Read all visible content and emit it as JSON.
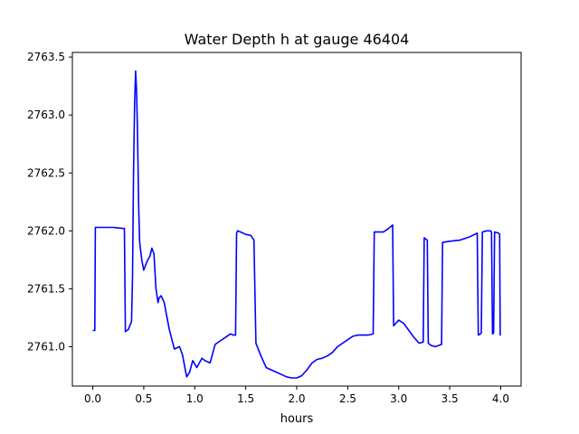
{
  "chart_data": {
    "type": "line",
    "title": "Water Depth h at gauge 46404",
    "xlabel": "hours",
    "ylabel": "",
    "xlim": [
      -0.2,
      4.2
    ],
    "ylim": [
      2760.66,
      2763.54
    ],
    "x_ticks": [
      0.0,
      0.5,
      1.0,
      1.5,
      2.0,
      2.5,
      3.0,
      3.5,
      4.0
    ],
    "x_tick_labels": [
      "0.0",
      "0.5",
      "1.0",
      "1.5",
      "2.0",
      "2.5",
      "3.0",
      "3.5",
      "4.0"
    ],
    "y_ticks": [
      2761.0,
      2761.5,
      2762.0,
      2762.5,
      2763.0,
      2763.5
    ],
    "y_tick_labels": [
      "2761.0",
      "2761.5",
      "2762.0",
      "2762.5",
      "2763.0",
      "2763.5"
    ],
    "grid": false,
    "legend": "none",
    "color": "#0000ff",
    "series": [
      {
        "x": [
          0.0,
          0.02,
          0.025,
          0.1,
          0.2,
          0.3,
          0.31,
          0.32,
          0.35,
          0.38,
          0.39,
          0.4,
          0.41,
          0.42,
          0.43,
          0.44,
          0.45,
          0.46,
          0.48,
          0.5,
          0.52,
          0.54,
          0.56,
          0.58,
          0.6,
          0.61,
          0.62,
          0.64,
          0.65,
          0.67,
          0.7,
          0.75,
          0.8,
          0.85,
          0.88,
          0.92,
          0.95,
          0.98,
          1.02,
          1.07,
          1.1,
          1.15,
          1.2,
          1.25,
          1.3,
          1.35,
          1.38,
          1.4,
          1.41,
          1.42,
          1.45,
          1.5,
          1.55,
          1.58,
          1.6,
          1.65,
          1.7,
          1.75,
          1.8,
          1.85,
          1.9,
          1.95,
          2.0,
          2.05,
          2.1,
          2.15,
          2.2,
          2.25,
          2.3,
          2.35,
          2.4,
          2.45,
          2.5,
          2.55,
          2.6,
          2.65,
          2.7,
          2.75,
          2.76,
          2.8,
          2.85,
          2.9,
          2.94,
          2.95,
          2.97,
          3.0,
          3.05,
          3.1,
          3.15,
          3.2,
          3.24,
          3.25,
          3.28,
          3.29,
          3.32,
          3.36,
          3.42,
          3.43,
          3.5,
          3.6,
          3.7,
          3.77,
          3.78,
          3.8,
          3.81,
          3.82,
          3.86,
          3.9,
          3.91,
          3.92,
          3.93,
          3.94,
          3.98,
          3.99,
          3.995,
          4.0
        ],
        "y": [
          2761.14,
          2761.14,
          2762.03,
          2762.03,
          2762.03,
          2762.02,
          2762.02,
          2761.13,
          2761.15,
          2761.22,
          2761.6,
          2762.5,
          2763.1,
          2763.38,
          2763.2,
          2762.8,
          2762.2,
          2761.9,
          2761.75,
          2761.66,
          2761.71,
          2761.75,
          2761.78,
          2761.85,
          2761.8,
          2761.65,
          2761.5,
          2761.38,
          2761.42,
          2761.44,
          2761.38,
          2761.15,
          2760.98,
          2761.0,
          2760.93,
          2760.74,
          2760.78,
          2760.88,
          2760.82,
          2760.9,
          2760.88,
          2760.86,
          2761.02,
          2761.05,
          2761.08,
          2761.11,
          2761.1,
          2761.1,
          2761.98,
          2762.0,
          2761.99,
          2761.97,
          2761.96,
          2761.92,
          2761.03,
          2760.92,
          2760.82,
          2760.8,
          2760.78,
          2760.76,
          2760.74,
          2760.73,
          2760.73,
          2760.75,
          2760.8,
          2760.86,
          2760.89,
          2760.9,
          2760.92,
          2760.95,
          2761.0,
          2761.03,
          2761.06,
          2761.09,
          2761.1,
          2761.1,
          2761.1,
          2761.11,
          2761.99,
          2761.99,
          2761.99,
          2762.02,
          2762.05,
          2761.18,
          2761.2,
          2761.23,
          2761.2,
          2761.14,
          2761.08,
          2761.03,
          2761.04,
          2761.94,
          2761.92,
          2761.03,
          2761.01,
          2761.0,
          2761.02,
          2761.9,
          2761.91,
          2761.92,
          2761.95,
          2761.98,
          2761.1,
          2761.11,
          2761.12,
          2761.99,
          2762.0,
          2762.0,
          2761.99,
          2761.11,
          2761.12,
          2761.99,
          2761.98,
          2761.97,
          2761.1,
          2761.1
        ]
      }
    ]
  }
}
